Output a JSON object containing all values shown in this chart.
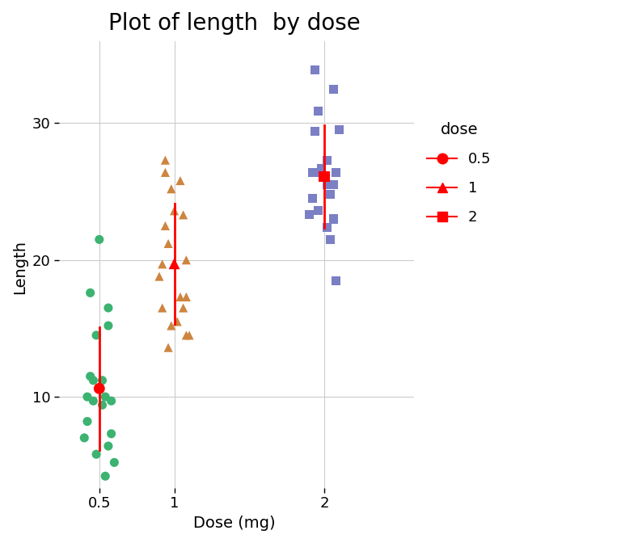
{
  "title": "Plot of length  by dose",
  "xlabel": "Dose (mg)",
  "ylabel": "Length",
  "background_color": "#FFFFFF",
  "grid_color": "#CCCCCC",
  "doses": [
    0.5,
    1.0,
    2.0
  ],
  "dose_colors": [
    "#3CB371",
    "#CD853F",
    "#7B7FC4"
  ],
  "dose_0.5": [
    4.2,
    11.5,
    7.3,
    5.8,
    6.4,
    10.0,
    11.2,
    11.2,
    5.2,
    7.0,
    15.2,
    21.5,
    17.6,
    9.7,
    14.5,
    10.0,
    8.2,
    9.4,
    16.5,
    9.7
  ],
  "dose_1.0": [
    16.5,
    16.5,
    15.2,
    17.3,
    22.5,
    17.3,
    13.6,
    14.5,
    18.8,
    15.5,
    19.7,
    23.3,
    23.6,
    26.4,
    20.0,
    25.2,
    25.8,
    21.2,
    14.5,
    27.3
  ],
  "dose_2.0": [
    23.6,
    18.5,
    33.9,
    25.5,
    26.4,
    32.5,
    26.7,
    21.5,
    23.3,
    29.5,
    25.5,
    26.4,
    22.4,
    24.5,
    24.8,
    30.9,
    26.4,
    27.3,
    29.4,
    23.0
  ],
  "mean_0.5": 10.605,
  "mean_1.0": 19.735,
  "mean_2.0": 26.1,
  "sd_0.5": 4.499763,
  "sd_1.0": 4.415436,
  "sd_2.0": 3.77415,
  "jitter_0.5": [
    0.04,
    -0.06,
    0.08,
    -0.02,
    0.06,
    -0.08,
    0.02,
    -0.04,
    0.1,
    -0.1,
    0.06,
    0.0,
    -0.06,
    0.08,
    -0.02,
    0.04,
    -0.08,
    0.02,
    0.06,
    -0.04
  ],
  "jitter_1.0": [
    -0.08,
    0.06,
    -0.02,
    0.08,
    -0.06,
    0.04,
    -0.04,
    0.1,
    -0.1,
    0.02,
    -0.08,
    0.06,
    0.0,
    -0.06,
    0.08,
    -0.02,
    0.04,
    -0.04,
    0.08,
    -0.06
  ],
  "jitter_2.0": [
    -0.04,
    0.08,
    -0.06,
    0.02,
    -0.08,
    0.06,
    -0.02,
    0.04,
    -0.1,
    0.1,
    0.06,
    -0.06,
    0.02,
    -0.08,
    0.04,
    -0.04,
    0.08,
    0.02,
    -0.06,
    0.06
  ],
  "ylim": [
    3,
    36
  ],
  "yticks": [
    10,
    20,
    30
  ],
  "xticks": [
    0.5,
    1.0,
    2.0
  ],
  "xticklabels": [
    "0.5",
    "1",
    "2"
  ],
  "xlim": [
    0.2,
    2.6
  ],
  "legend_title": "dose",
  "legend_entries": [
    "0.5",
    "1",
    "2"
  ],
  "mean_color": "#FF0000",
  "mean_marker_0.5": "o",
  "mean_marker_1.0": "^",
  "mean_marker_2.0": "s",
  "mean_markersize": 10,
  "strip_markersize": 8,
  "errorbar_linewidth": 2.0,
  "title_fontsize": 20,
  "axis_label_fontsize": 14,
  "tick_fontsize": 13,
  "legend_fontsize": 13,
  "legend_title_fontsize": 14
}
